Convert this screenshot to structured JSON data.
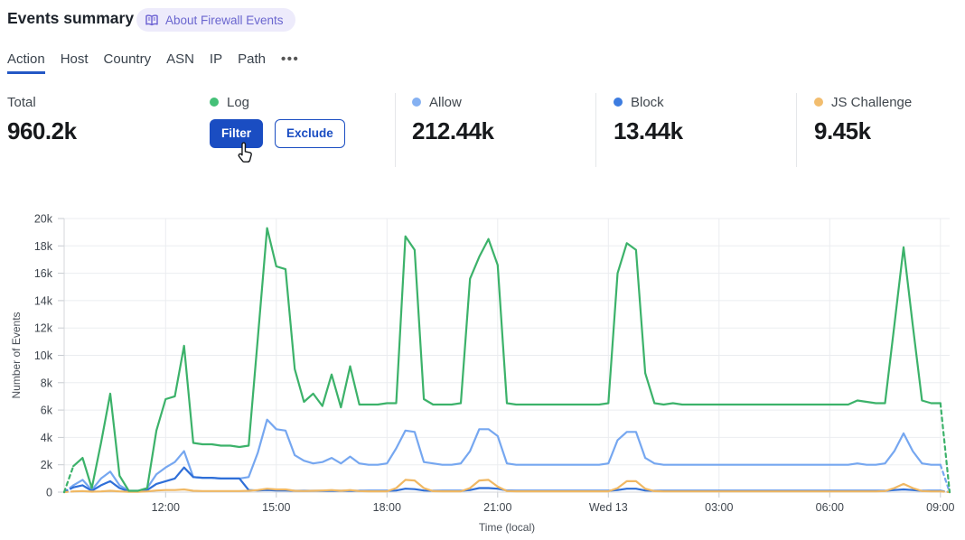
{
  "header": {
    "title": "Events summary",
    "badge": {
      "icon": "book-icon",
      "label": "About Firewall Events"
    }
  },
  "tabs": {
    "items": [
      {
        "label": "Action",
        "active": true
      },
      {
        "label": "Host",
        "active": false
      },
      {
        "label": "Country",
        "active": false
      },
      {
        "label": "ASN",
        "active": false
      },
      {
        "label": "IP",
        "active": false
      },
      {
        "label": "Path",
        "active": false
      }
    ],
    "more_label": "•••"
  },
  "stats": {
    "cards": [
      {
        "label": "Total",
        "value": "960.2k"
      },
      {
        "label": "Log",
        "color": "#44c077",
        "actions": {
          "filter": "Filter",
          "exclude": "Exclude"
        }
      },
      {
        "label": "Allow",
        "color": "#85b1f2",
        "value": "212.44k"
      },
      {
        "label": "Block",
        "color": "#3d7ce0",
        "value": "13.44k"
      },
      {
        "label": "JS Challenge",
        "color": "#f2bd6e",
        "value": "9.45k"
      }
    ]
  },
  "chart_data": {
    "type": "line",
    "xlabel": "Time (local)",
    "ylabel": "Number of Events",
    "values_unit": "thousands of events per 15-minute interval",
    "ymax_k": 20,
    "ylim": [
      0,
      20000
    ],
    "grid": true,
    "dashed_edge_segments": true,
    "y_ticks": [
      "0",
      "2k",
      "4k",
      "6k",
      "8k",
      "10k",
      "12k",
      "14k",
      "16k",
      "18k",
      "20k"
    ],
    "x_tick_labels": [
      "12:00",
      "15:00",
      "18:00",
      "21:00",
      "Wed 13",
      "03:00",
      "06:00",
      "09:00"
    ],
    "x_tick_indices": [
      11,
      23,
      35,
      47,
      59,
      71,
      83,
      95
    ],
    "series": [
      {
        "name": "Log",
        "color": "#3cb26a",
        "values": [
          0,
          1.9,
          2.5,
          0.3,
          3.6,
          7.2,
          1.2,
          0.1,
          0.1,
          0.3,
          4.5,
          6.8,
          7.0,
          10.7,
          3.6,
          3.5,
          3.5,
          3.4,
          3.4,
          3.3,
          3.4,
          11.3,
          19.3,
          16.5,
          16.3,
          9.0,
          6.6,
          7.2,
          6.3,
          8.6,
          6.2,
          9.2,
          6.4,
          6.4,
          6.4,
          6.5,
          6.5,
          18.7,
          17.7,
          6.8,
          6.4,
          6.4,
          6.4,
          6.5,
          15.6,
          17.2,
          18.5,
          16.6,
          6.5,
          6.4,
          6.4,
          6.4,
          6.4,
          6.4,
          6.4,
          6.4,
          6.4,
          6.4,
          6.4,
          6.5,
          16.0,
          18.2,
          17.7,
          8.7,
          6.5,
          6.4,
          6.5,
          6.4,
          6.4,
          6.4,
          6.4,
          6.4,
          6.4,
          6.4,
          6.4,
          6.4,
          6.4,
          6.4,
          6.4,
          6.4,
          6.4,
          6.4,
          6.4,
          6.4,
          6.4,
          6.4,
          6.7,
          6.6,
          6.5,
          6.5,
          12.2,
          17.9,
          12.2,
          6.7,
          6.5,
          6.5,
          0
        ]
      },
      {
        "name": "Allow",
        "color": "#76a7f0",
        "values": [
          0,
          0.5,
          0.9,
          0.15,
          1.0,
          1.5,
          0.5,
          0.1,
          0.1,
          0.3,
          1.3,
          1.8,
          2.2,
          3.0,
          1.1,
          1.05,
          1.05,
          1.0,
          1.0,
          1.0,
          1.1,
          2.9,
          5.3,
          4.6,
          4.5,
          2.7,
          2.3,
          2.1,
          2.2,
          2.5,
          2.1,
          2.6,
          2.1,
          2.0,
          2.0,
          2.1,
          3.2,
          4.5,
          4.4,
          2.2,
          2.1,
          2.0,
          2.0,
          2.1,
          3.0,
          4.6,
          4.6,
          4.1,
          2.1,
          2.0,
          2.0,
          2.0,
          2.0,
          2.0,
          2.0,
          2.0,
          2.0,
          2.0,
          2.0,
          2.1,
          3.8,
          4.4,
          4.4,
          2.5,
          2.1,
          2.0,
          2.0,
          2.0,
          2.0,
          2.0,
          2.0,
          2.0,
          2.0,
          2.0,
          2.0,
          2.0,
          2.0,
          2.0,
          2.0,
          2.0,
          2.0,
          2.0,
          2.0,
          2.0,
          2.0,
          2.0,
          2.1,
          2.0,
          2.0,
          2.1,
          3.0,
          4.3,
          3.0,
          2.1,
          2.0,
          2.0,
          0
        ]
      },
      {
        "name": "Block",
        "color": "#2f6fd8",
        "values": [
          0,
          0.35,
          0.5,
          0.1,
          0.5,
          0.8,
          0.3,
          0.05,
          0.05,
          0.15,
          0.6,
          0.8,
          1.0,
          1.8,
          1.1,
          1.05,
          1.05,
          1.0,
          1.0,
          1.0,
          0.15,
          0.12,
          0.15,
          0.12,
          0.12,
          0.1,
          0.1,
          0.1,
          0.1,
          0.1,
          0.1,
          0.1,
          0.1,
          0.1,
          0.1,
          0.1,
          0.12,
          0.25,
          0.22,
          0.12,
          0.1,
          0.1,
          0.1,
          0.1,
          0.15,
          0.3,
          0.3,
          0.25,
          0.12,
          0.1,
          0.1,
          0.1,
          0.1,
          0.1,
          0.1,
          0.1,
          0.1,
          0.1,
          0.1,
          0.1,
          0.15,
          0.25,
          0.25,
          0.12,
          0.1,
          0.1,
          0.1,
          0.1,
          0.1,
          0.1,
          0.1,
          0.1,
          0.1,
          0.1,
          0.1,
          0.1,
          0.1,
          0.1,
          0.1,
          0.1,
          0.1,
          0.1,
          0.1,
          0.1,
          0.1,
          0.1,
          0.1,
          0.1,
          0.1,
          0.1,
          0.15,
          0.2,
          0.15,
          0.1,
          0.1,
          0.1,
          0
        ]
      },
      {
        "name": "JS Challenge",
        "color": "#f0b863",
        "values": [
          0,
          0.05,
          0.08,
          0.03,
          0.05,
          0.1,
          0.05,
          0.02,
          0.02,
          0.05,
          0.12,
          0.15,
          0.15,
          0.2,
          0.1,
          0.08,
          0.08,
          0.08,
          0.08,
          0.08,
          0.1,
          0.15,
          0.25,
          0.2,
          0.2,
          0.1,
          0.08,
          0.1,
          0.12,
          0.15,
          0.1,
          0.15,
          0.08,
          0.06,
          0.06,
          0.06,
          0.3,
          0.9,
          0.85,
          0.3,
          0.07,
          0.06,
          0.06,
          0.06,
          0.3,
          0.85,
          0.9,
          0.4,
          0.08,
          0.06,
          0.06,
          0.06,
          0.06,
          0.06,
          0.06,
          0.06,
          0.06,
          0.06,
          0.06,
          0.06,
          0.3,
          0.8,
          0.8,
          0.25,
          0.07,
          0.05,
          0.05,
          0.05,
          0.05,
          0.05,
          0.05,
          0.05,
          0.05,
          0.05,
          0.05,
          0.05,
          0.05,
          0.05,
          0.05,
          0.05,
          0.05,
          0.05,
          0.05,
          0.05,
          0.05,
          0.05,
          0.05,
          0.05,
          0.05,
          0.08,
          0.3,
          0.6,
          0.3,
          0.08,
          0.05,
          0.05,
          0
        ]
      }
    ]
  }
}
